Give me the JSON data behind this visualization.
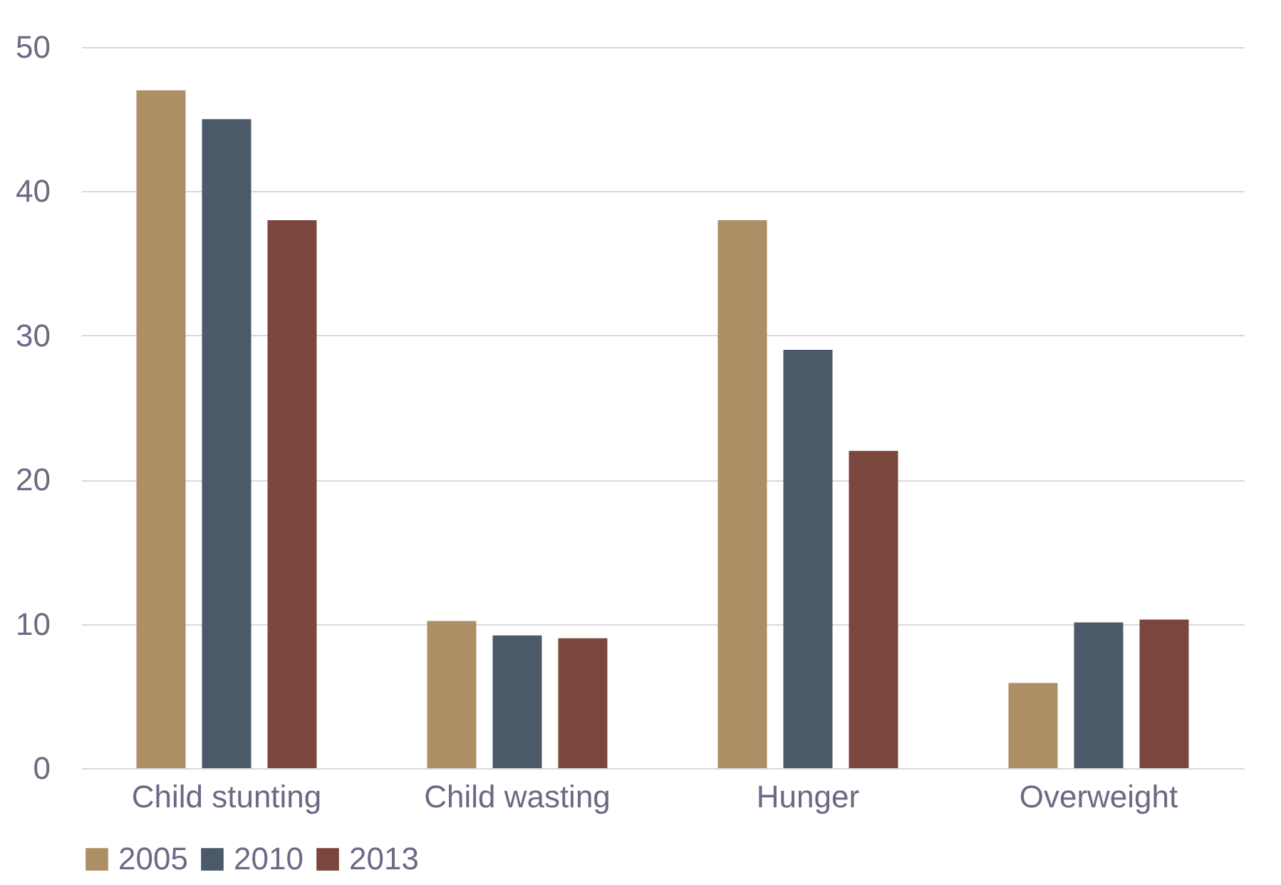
{
  "chart_data": {
    "type": "bar",
    "categories": [
      "Child stunting",
      "Child wasting",
      "Hunger",
      "Overweight"
    ],
    "series": [
      {
        "name": "2005",
        "color": "#ad8e65",
        "values": [
          47,
          10.2,
          38,
          5.9
        ]
      },
      {
        "name": "2010",
        "color": "#4b5969",
        "values": [
          45,
          9.2,
          29,
          10.1
        ]
      },
      {
        "name": "2013",
        "color": "#7a463d",
        "values": [
          38,
          9,
          22,
          10.3
        ]
      }
    ],
    "ylim": [
      0,
      50
    ],
    "yticks": [
      0,
      10,
      20,
      30,
      40,
      50
    ],
    "grid": "y",
    "legend": "bottom"
  }
}
